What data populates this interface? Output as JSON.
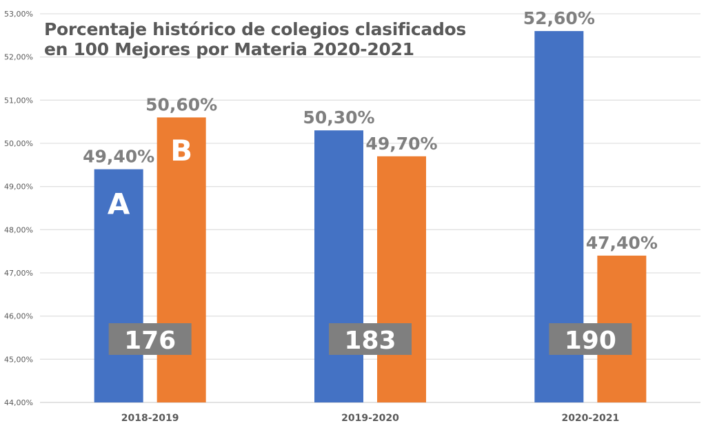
{
  "chart_data": {
    "type": "bar",
    "title_lines": [
      "Porcentaje histórico de colegios clasificados",
      "en 100 Mejores por Materia 2020-2021"
    ],
    "categories": [
      "2018-2019",
      "2019-2020",
      "2020-2021"
    ],
    "series": [
      {
        "name": "A",
        "color": "#4472C4",
        "values": [
          49.4,
          50.3,
          52.6
        ],
        "labels": [
          "49,40%",
          "50,30%",
          "52,60%"
        ]
      },
      {
        "name": "B",
        "color": "#ED7D31",
        "values": [
          50.6,
          49.7,
          47.4
        ],
        "labels": [
          "50,60%",
          "49,70%",
          "47,40%"
        ]
      }
    ],
    "series_annotations": [
      "A",
      "B"
    ],
    "counts": [
      "176",
      "183",
      "190"
    ],
    "ylim": [
      44,
      53
    ],
    "yticks": [
      44,
      45,
      46,
      47,
      48,
      49,
      50,
      51,
      52,
      53
    ],
    "ytick_labels": [
      "44,00%",
      "45,00%",
      "46,00%",
      "47,00%",
      "48,00%",
      "49,00%",
      "50,00%",
      "51,00%",
      "52,00%",
      "53,00%"
    ],
    "grid": true,
    "xlabel": "",
    "ylabel": ""
  }
}
